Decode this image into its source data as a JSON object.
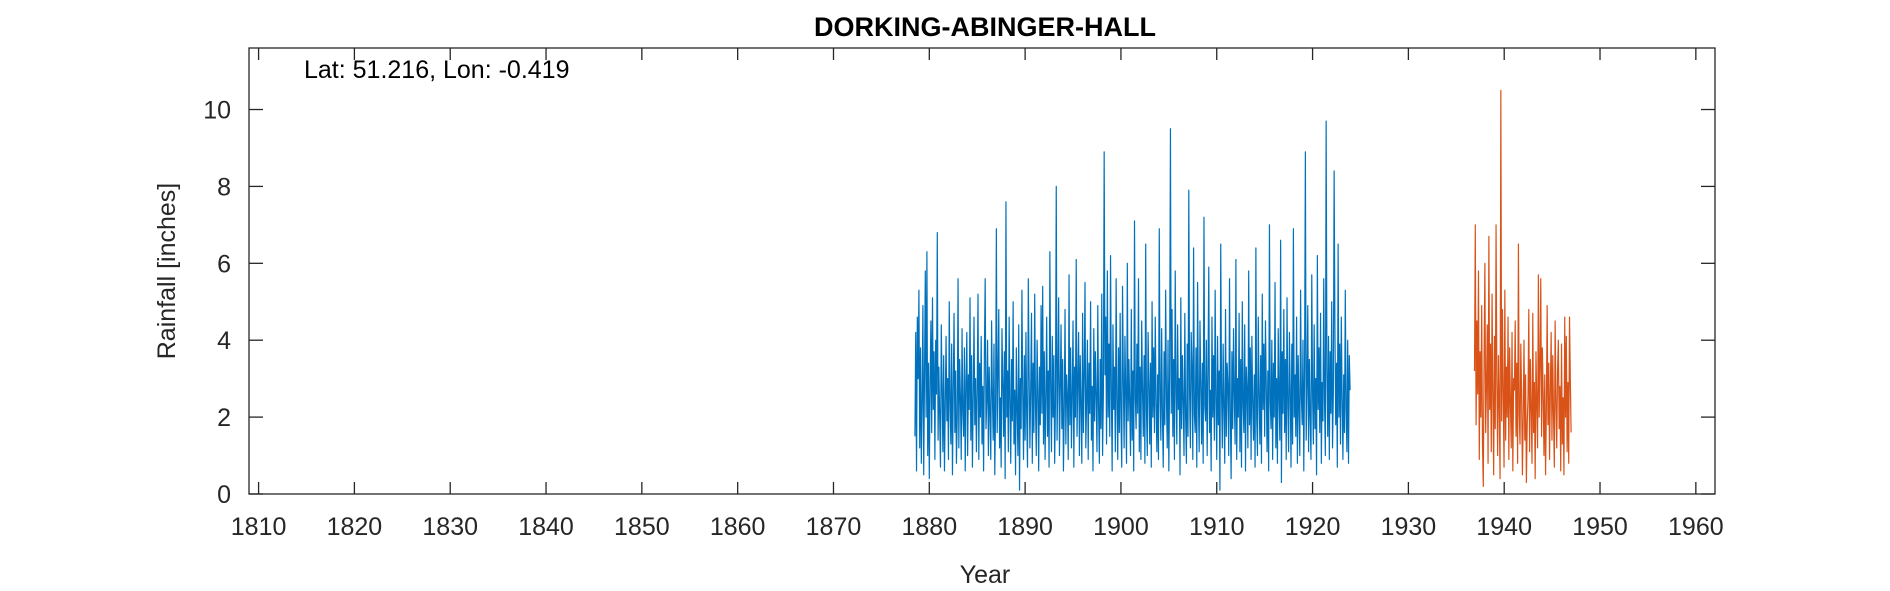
{
  "chart_data": {
    "type": "line",
    "title": "DORKING-ABINGER-HALL",
    "annotation": "Lat: 51.216, Lon: -0.419",
    "xlabel": "Year",
    "ylabel": "Rainfall [inches]",
    "xlim": [
      1809,
      1962
    ],
    "ylim": [
      0,
      11.6
    ],
    "xticks": [
      1810,
      1820,
      1830,
      1840,
      1850,
      1860,
      1870,
      1880,
      1890,
      1900,
      1910,
      1920,
      1930,
      1940,
      1950,
      1960
    ],
    "yticks": [
      0,
      2,
      4,
      6,
      8,
      10
    ],
    "grid": false,
    "box": true,
    "series": [
      {
        "color": "#0072BD",
        "x_start": 1878.5,
        "x_step": 0.083333,
        "values": [
          1.5,
          4.2,
          0.6,
          4.6,
          3.0,
          5.3,
          1.2,
          3.8,
          0.8,
          2.4,
          4.9,
          0.5,
          3.1,
          5.8,
          2.0,
          6.3,
          1.0,
          3.4,
          0.4,
          2.9,
          4.5,
          1.6,
          5.1,
          2.2,
          3.7,
          0.9,
          4.0,
          2.6,
          6.8,
          1.4,
          3.3,
          2.0,
          0.7,
          4.4,
          2.8,
          1.1,
          3.6,
          0.6,
          2.3,
          4.1,
          1.9,
          3.0,
          0.9,
          5.0,
          2.4,
          1.3,
          3.9,
          0.5,
          2.7,
          4.7,
          1.6,
          3.2,
          0.8,
          2.0,
          5.6,
          1.2,
          3.5,
          2.5,
          0.9,
          4.3,
          2.1,
          1.5,
          3.8,
          0.6,
          2.9,
          4.2,
          1.0,
          3.1,
          2.2,
          5.1,
          1.4,
          3.6,
          0.7,
          2.5,
          4.6,
          1.8,
          3.0,
          1.1,
          2.7,
          5.2,
          0.9,
          3.4,
          2.0,
          4.1,
          1.3,
          2.8,
          0.6,
          3.7,
          5.6,
          1.7,
          2.4,
          4.0,
          1.0,
          3.3,
          2.1,
          0.9,
          4.5,
          2.6,
          1.4,
          3.9,
          0.5,
          2.2,
          6.9,
          1.6,
          3.1,
          4.8,
          1.2,
          2.5,
          0.7,
          4.3,
          2.9,
          1.5,
          3.7,
          0.4,
          7.6,
          2.0,
          3.2,
          1.1,
          4.6,
          2.4,
          0.8,
          3.5,
          1.9,
          5.0,
          1.3,
          2.7,
          0.5,
          3.8,
          2.2,
          1.0,
          4.4,
          0.1,
          3.0,
          1.7,
          5.3,
          2.6,
          0.9,
          3.6,
          1.4,
          4.2,
          2.0,
          0.7,
          5.6,
          3.1,
          1.2,
          2.8,
          4.7,
          0.8,
          3.4,
          1.6,
          5.2,
          2.3,
          1.0,
          4.0,
          2.7,
          0.6,
          3.3,
          1.8,
          4.9,
          2.1,
          5.4,
          1.3,
          3.7,
          0.9,
          2.5,
          4.6,
          1.5,
          3.2,
          0.7,
          6.3,
          2.8,
          1.1,
          4.1,
          2.0,
          3.6,
          0.8,
          2.4,
          8.0,
          1.4,
          3.0,
          5.1,
          1.0,
          2.7,
          4.4,
          1.7,
          3.5,
          0.6,
          2.2,
          4.8,
          1.3,
          3.1,
          2.5,
          0.9,
          5.7,
          1.8,
          3.8,
          1.2,
          2.6,
          4.5,
          0.7,
          3.3,
          2.0,
          6.1,
          1.5,
          2.9,
          4.2,
          1.0,
          3.6,
          2.3,
          0.8,
          4.7,
          1.6,
          3.0,
          5.5,
          1.2,
          2.4,
          4.0,
          0.9,
          3.4,
          2.1,
          5.0,
          1.4,
          2.8,
          0.6,
          4.3,
          1.9,
          3.7,
          2.5,
          1.1,
          4.9,
          2.2,
          0.8,
          3.5,
          1.7,
          5.2,
          1.0,
          2.6,
          8.9,
          3.1,
          4.6,
          1.3,
          5.8,
          2.0,
          3.9,
          1.5,
          6.2,
          2.7,
          0.6,
          4.4,
          2.2,
          3.3,
          1.1,
          5.6,
          2.4,
          0.9,
          3.8,
          1.6,
          4.7,
          2.0,
          0.7,
          5.4,
          3.0,
          1.2,
          4.1,
          2.6,
          0.8,
          6.0,
          1.9,
          3.5,
          2.3,
          1.0,
          4.8,
          1.4,
          3.2,
          0.6,
          7.1,
          2.5,
          1.7,
          3.9,
          2.1,
          5.6,
          1.1,
          3.3,
          0.9,
          4.5,
          2.7,
          1.5,
          3.6,
          0.8,
          6.5,
          2.2,
          1.0,
          4.2,
          2.9,
          1.3,
          3.4,
          0.7,
          5.0,
          2.0,
          3.8,
          1.6,
          4.6,
          2.4,
          1.1,
          3.1,
          0.9,
          6.9,
          2.6,
          1.4,
          4.3,
          2.0,
          0.7,
          3.7,
          1.8,
          5.3,
          2.5,
          1.2,
          4.0,
          0.6,
          3.2,
          9.5,
          2.1,
          4.8,
          1.5,
          3.5,
          0.9,
          5.8,
          2.7,
          1.3,
          4.4,
          2.2,
          3.0,
          0.5,
          5.1,
          1.7,
          3.6,
          2.4,
          1.0,
          4.7,
          2.0,
          0.8,
          3.9,
          1.5,
          7.9,
          2.6,
          1.2,
          4.2,
          3.3,
          0.9,
          6.4,
          2.1,
          1.6,
          3.8,
          0.7,
          5.5,
          2.5,
          1.1,
          4.5,
          2.9,
          1.3,
          3.4,
          0.8,
          7.2,
          2.3,
          1.9,
          4.0,
          1.0,
          3.1,
          5.9,
          1.6,
          2.7,
          0.6,
          4.6,
          2.0,
          3.6,
          1.4,
          5.3,
          2.4,
          0.9,
          4.1,
          1.8,
          3.2,
          0.1,
          6.5,
          2.6,
          1.2,
          3.9,
          2.2,
          0.8,
          4.8,
          1.5,
          3.4,
          2.8,
          1.0,
          5.6,
          2.1,
          0.4,
          3.7,
          1.7,
          4.3,
          2.5,
          1.3,
          6.1,
          0.9,
          3.0,
          2.0,
          4.7,
          1.1,
          3.5,
          0.7,
          5.0,
          2.3,
          1.6,
          4.4,
          0.6,
          3.3,
          2.7,
          1.2,
          5.8,
          1.8,
          3.8,
          0.9,
          4.1,
          2.4,
          1.4,
          3.1,
          0.7,
          6.4,
          2.0,
          1.0,
          4.6,
          2.6,
          1.3,
          3.6,
          0.8,
          5.2,
          2.2,
          3.9,
          1.5,
          4.5,
          2.8,
          1.1,
          3.2,
          0.6,
          7.0,
          2.4,
          1.7,
          4.0,
          0.9,
          3.4,
          2.0,
          5.5,
          1.2,
          3.0,
          0.8,
          4.3,
          2.5,
          1.4,
          6.6,
          0.3,
          3.7,
          2.1,
          4.8,
          1.6,
          3.5,
          0.9,
          5.1,
          2.3,
          1.1,
          4.2,
          2.7,
          0.7,
          3.9,
          1.3,
          6.9,
          2.0,
          3.1,
          1.5,
          4.6,
          0.8,
          3.6,
          2.2,
          1.0,
          5.3,
          2.5,
          1.8,
          4.0,
          0.6,
          3.3,
          8.9,
          1.4,
          2.8,
          4.9,
          1.1,
          3.5,
          2.0,
          0.9,
          5.7,
          2.6,
          1.3,
          4.4,
          1.7,
          3.0,
          0.5,
          6.2,
          2.2,
          3.8,
          1.6,
          4.7,
          0.8,
          2.9,
          1.9,
          5.6,
          2.4,
          1.0,
          9.7,
          3.2,
          1.5,
          4.1,
          0.9,
          3.7,
          2.1,
          5.0,
          1.2,
          2.6,
          8.4,
          4.3,
          1.8,
          3.4,
          0.7,
          6.5,
          2.0,
          3.9,
          1.3,
          4.6,
          2.5,
          0.9,
          3.1,
          1.6,
          5.3,
          2.2,
          1.1,
          4.0,
          0.8,
          3.6,
          2.7
        ]
      },
      {
        "color": "#D95319",
        "x_start": 1936.9,
        "x_step": 0.083333,
        "values": [
          3.2,
          7.0,
          1.8,
          4.5,
          2.6,
          5.8,
          0.9,
          3.7,
          2.0,
          4.9,
          1.3,
          0.2,
          3.5,
          6.0,
          1.6,
          2.8,
          4.4,
          0.8,
          6.7,
          2.2,
          3.9,
          1.1,
          5.2,
          2.6,
          0.5,
          4.1,
          1.7,
          7.0,
          2.9,
          1.0,
          3.6,
          2.3,
          0.4,
          10.5,
          1.9,
          4.8,
          2.5,
          0.7,
          5.3,
          1.4,
          3.3,
          2.0,
          4.6,
          0.9,
          3.8,
          2.4,
          1.2,
          4.2,
          0.6,
          3.0,
          2.7,
          4.5,
          1.5,
          3.4,
          0.8,
          6.5,
          2.1,
          1.3,
          3.9,
          2.6,
          0.5,
          2.0,
          4.0,
          1.4,
          3.1,
          0.3,
          1.8,
          2.5,
          4.8,
          1.1,
          3.5,
          2.2,
          0.8,
          4.7,
          1.6,
          2.9,
          0.4,
          3.7,
          2.3,
          1.2,
          5.7,
          2.0,
          3.3,
          5.6,
          1.5,
          3.8,
          2.6,
          1.0,
          3.1,
          0.5,
          2.2,
          4.9,
          1.8,
          3.4,
          0.9,
          2.7,
          4.2,
          1.4,
          3.6,
          2.0,
          0.7,
          4.5,
          2.4,
          1.2,
          3.2,
          4.0,
          1.7,
          2.8,
          0.6,
          3.9,
          1.3,
          2.5,
          0.5,
          4.6,
          2.0,
          4.1,
          1.1,
          2.9,
          0.8,
          4.6,
          3.0,
          1.6
        ]
      }
    ]
  }
}
